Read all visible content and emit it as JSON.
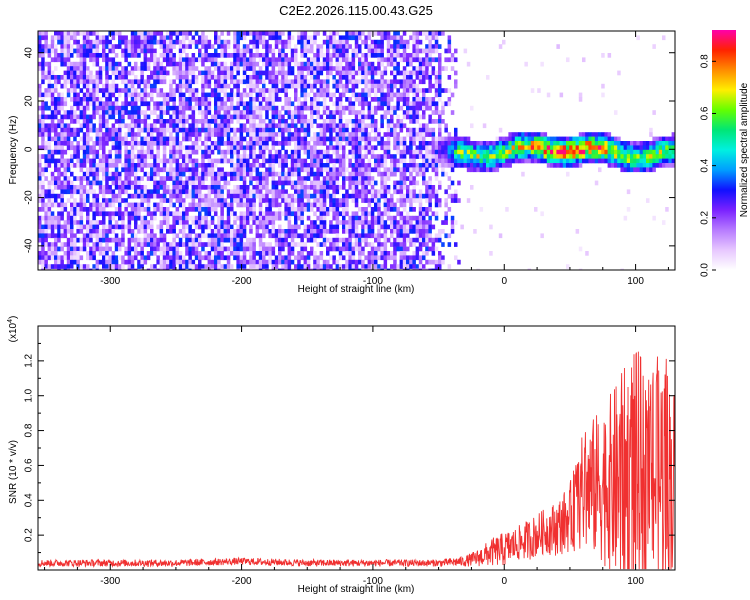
{
  "title": "C2E2.2026.115.00.43.G25",
  "chart_data": [
    {
      "type": "heatmap",
      "xlabel": "Height of straight line (km)",
      "ylabel": "Frequency (Hz)",
      "xlim": [
        -355,
        130
      ],
      "ylim": [
        -50,
        49
      ],
      "xticks": [
        -300,
        -200,
        -100,
        0,
        100
      ],
      "yticks": [
        -40,
        -20,
        0,
        20,
        40
      ],
      "colorbar": {
        "label": "Normalized spectral amplitude",
        "range": [
          0,
          0.92
        ],
        "ticks": [
          "0.0",
          "0.2",
          "0.4",
          "0.6",
          "0.8"
        ],
        "colors": [
          "#ffffff",
          "#e7c7ff",
          "#b77bff",
          "#7a22ff",
          "#1010ff",
          "#009eff",
          "#00f0e0",
          "#00e676",
          "#64ff00",
          "#ffee00",
          "#ff8c00",
          "#ff2200",
          "#ff00aa"
        ]
      },
      "description": "Broadband noise (~0.2-0.35) spanning the full frequency range for heights below about -40 km; a narrow signal band near 0 Hz (about -5 to +5 Hz) for heights above about -60 km with peak amplitude ~0.9 near 50 km.",
      "signal_band": {
        "x_start": -60,
        "center_hz": 0,
        "half_width_hz": 5,
        "peak_x": 50,
        "peak_value": 0.9
      }
    },
    {
      "type": "line",
      "xlabel": "Height of straight line (km)",
      "ylabel": "SNR (10 * v/v)",
      "y_multiplier": "(x10",
      "y_multiplier_exp": "4",
      "y_multiplier_close": ")",
      "xlim": [
        -355,
        130
      ],
      "ylim": [
        0,
        1.4
      ],
      "xticks": [
        -300,
        -200,
        -100,
        0,
        100
      ],
      "yticks": [
        "0.2",
        "0.4",
        "0.6",
        "0.8",
        "1.0",
        "1.2"
      ],
      "series": [
        {
          "name": "SNR",
          "color": "#f03030",
          "x": [
            -355,
            -300,
            -250,
            -200,
            -150,
            -100,
            -50,
            -30,
            -20,
            -10,
            0,
            10,
            20,
            30,
            40,
            50,
            55,
            60,
            70,
            80,
            90,
            100,
            110,
            120,
            130
          ],
          "mean": [
            0.04,
            0.04,
            0.04,
            0.05,
            0.04,
            0.04,
            0.04,
            0.05,
            0.07,
            0.1,
            0.12,
            0.15,
            0.18,
            0.22,
            0.24,
            0.3,
            0.38,
            0.45,
            0.48,
            0.5,
            0.5,
            0.52,
            0.55,
            0.52,
            0.5
          ],
          "max": [
            0.06,
            0.06,
            0.06,
            0.07,
            0.06,
            0.06,
            0.06,
            0.08,
            0.12,
            0.18,
            0.22,
            0.25,
            0.3,
            0.35,
            0.4,
            0.5,
            0.65,
            0.8,
            0.9,
            1.0,
            1.15,
            1.3,
            1.1,
            1.3,
            1.05
          ]
        }
      ]
    }
  ]
}
